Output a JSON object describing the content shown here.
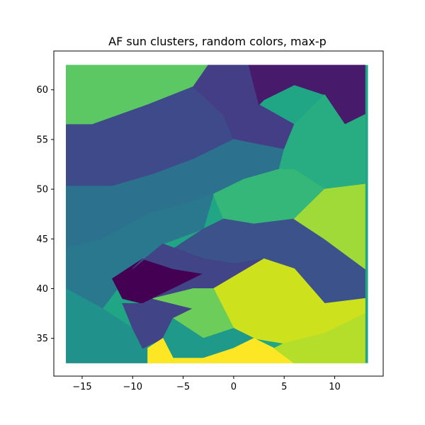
{
  "chart_data": {
    "type": "heatmap",
    "title": "AF sun clusters, random colors, max-p",
    "xlabel": "",
    "ylabel": "",
    "xlim": [
      -17.8,
      14.8
    ],
    "ylim": [
      31.2,
      63.9
    ],
    "x_ticks": [
      -15,
      -10,
      -5,
      0,
      5,
      10
    ],
    "y_ticks": [
      35,
      40,
      45,
      50,
      55,
      60
    ],
    "x_tick_labels": [
      "−15",
      "−10",
      "−5",
      "0",
      "5",
      "10"
    ],
    "y_tick_labels": [
      "35",
      "40",
      "45",
      "50",
      "55",
      "60"
    ],
    "grid": false,
    "legend": "none",
    "colormap": "viridis",
    "background_color": "#21a685",
    "regions": [
      {
        "color": "#5cc863",
        "points": [
          [
            -16.6,
            62.5
          ],
          [
            -2.5,
            62.5
          ],
          [
            -4,
            60.3
          ],
          [
            -8.5,
            58.5
          ],
          [
            -14,
            56.5
          ],
          [
            -16.6,
            56.5
          ]
        ]
      },
      {
        "color": "#3e4a89",
        "points": [
          [
            -16.6,
            56.5
          ],
          [
            -14,
            56.5
          ],
          [
            -8.5,
            58.5
          ],
          [
            -4,
            60.3
          ],
          [
            -1,
            57.5
          ],
          [
            0,
            55
          ],
          [
            -4,
            53
          ],
          [
            -8,
            51.5
          ],
          [
            -12,
            50.3
          ],
          [
            -16.6,
            50.3
          ]
        ]
      },
      {
        "color": "#433e85",
        "points": [
          [
            -2.5,
            62.5
          ],
          [
            1.5,
            62.5
          ],
          [
            2.5,
            58.5
          ],
          [
            6,
            56.5
          ],
          [
            5,
            54
          ],
          [
            0,
            55
          ],
          [
            -1,
            57.5
          ],
          [
            -4,
            60.3
          ]
        ]
      },
      {
        "color": "#481a6c",
        "points": [
          [
            1.5,
            62.5
          ],
          [
            13,
            62.5
          ],
          [
            13,
            57.5
          ],
          [
            11,
            56.5
          ],
          [
            9,
            59.5
          ],
          [
            6,
            60.5
          ],
          [
            3,
            59
          ],
          [
            2.5,
            58.5
          ]
        ]
      },
      {
        "color": "#2c728e",
        "points": [
          [
            -16.6,
            50.3
          ],
          [
            -12,
            50.3
          ],
          [
            -8,
            51.5
          ],
          [
            -4,
            53
          ],
          [
            0,
            55
          ],
          [
            5,
            54
          ],
          [
            4.5,
            52
          ],
          [
            1,
            51
          ],
          [
            -2,
            49.5
          ],
          [
            -5,
            48.5
          ],
          [
            -8.5,
            47.5
          ],
          [
            -13,
            45
          ],
          [
            -16.6,
            44
          ]
        ]
      },
      {
        "color": "#27ad81",
        "points": [
          [
            5,
            54
          ],
          [
            6,
            56.5
          ],
          [
            9,
            59.5
          ],
          [
            11,
            56.5
          ],
          [
            13,
            57.5
          ],
          [
            13,
            50.5
          ],
          [
            9,
            50
          ],
          [
            6,
            52
          ],
          [
            4.5,
            52
          ]
        ]
      },
      {
        "color": "#2a788e",
        "points": [
          [
            -16.6,
            44
          ],
          [
            -13,
            45
          ],
          [
            -8.5,
            47.5
          ],
          [
            -5,
            48.5
          ],
          [
            -2,
            49.5
          ],
          [
            -3,
            46
          ],
          [
            -7,
            44.5
          ],
          [
            -10,
            42
          ],
          [
            -13,
            38
          ],
          [
            -16.6,
            40
          ]
        ]
      },
      {
        "color": "#35b779",
        "points": [
          [
            -2,
            49.5
          ],
          [
            1,
            51
          ],
          [
            4.5,
            52
          ],
          [
            6,
            52
          ],
          [
            9,
            50
          ],
          [
            6,
            47
          ],
          [
            2,
            46.5
          ],
          [
            -1,
            47
          ]
        ]
      },
      {
        "color": "#21918c",
        "points": [
          [
            -16.6,
            40
          ],
          [
            -13,
            38
          ],
          [
            -10,
            36
          ],
          [
            -8.5,
            34
          ],
          [
            -8.5,
            32.5
          ],
          [
            -16.6,
            32.5
          ]
        ]
      },
      {
        "color": "#3b528b",
        "points": [
          [
            -3,
            46
          ],
          [
            -1,
            47
          ],
          [
            2,
            46.5
          ],
          [
            6,
            47
          ],
          [
            9,
            45
          ],
          [
            13,
            42
          ],
          [
            13,
            39
          ],
          [
            9,
            38.5
          ],
          [
            6,
            42
          ],
          [
            3,
            43
          ],
          [
            0,
            42.5
          ],
          [
            -3,
            43
          ],
          [
            -6,
            44
          ]
        ]
      },
      {
        "color": "#a0da39",
        "points": [
          [
            9,
            50
          ],
          [
            13,
            50.5
          ],
          [
            13,
            42
          ],
          [
            9,
            45
          ],
          [
            6,
            47
          ]
        ]
      },
      {
        "color": "#440154",
        "points": [
          [
            -12,
            41
          ],
          [
            -9,
            43
          ],
          [
            -6,
            42
          ],
          [
            -3,
            41.5
          ],
          [
            -5,
            40.5
          ],
          [
            -7,
            39.5
          ],
          [
            -9,
            38.5
          ],
          [
            -11,
            39
          ]
        ]
      },
      {
        "color": "#414487",
        "points": [
          [
            -10,
            42
          ],
          [
            -7,
            44.5
          ],
          [
            -3,
            43
          ],
          [
            0,
            42.5
          ],
          [
            3,
            43
          ],
          [
            -2,
            40
          ],
          [
            -4,
            38
          ],
          [
            -6,
            37
          ],
          [
            -7,
            35
          ],
          [
            -9,
            34
          ],
          [
            -10,
            36
          ],
          [
            -11,
            38.5
          ],
          [
            -9,
            38.5
          ],
          [
            -7,
            39.5
          ],
          [
            -5,
            40.5
          ],
          [
            -3,
            41.5
          ],
          [
            -6,
            42
          ],
          [
            -9,
            43
          ]
        ]
      },
      {
        "color": "#cde11d",
        "points": [
          [
            -2,
            40
          ],
          [
            3,
            43
          ],
          [
            6,
            42
          ],
          [
            9,
            38.5
          ],
          [
            13,
            39
          ],
          [
            13,
            37.5
          ],
          [
            9,
            35.5
          ],
          [
            5,
            34.5
          ],
          [
            2,
            35
          ],
          [
            0,
            36
          ]
        ]
      },
      {
        "color": "#6ccd5a",
        "points": [
          [
            -8,
            39
          ],
          [
            -4,
            40
          ],
          [
            -2,
            40
          ],
          [
            0,
            36
          ],
          [
            -3,
            35
          ],
          [
            -6,
            37
          ],
          [
            -4,
            38
          ]
        ]
      },
      {
        "color": "#1f998a",
        "points": [
          [
            -7,
            35
          ],
          [
            -6,
            37
          ],
          [
            -3,
            35
          ],
          [
            0,
            36
          ],
          [
            2,
            35
          ],
          [
            0,
            34
          ],
          [
            -3,
            33
          ],
          [
            -6,
            33
          ]
        ]
      },
      {
        "color": "#fde725",
        "points": [
          [
            -8.5,
            32.5
          ],
          [
            -8.5,
            34
          ],
          [
            -7,
            35
          ],
          [
            -6,
            33
          ],
          [
            -3,
            33
          ],
          [
            0,
            34
          ],
          [
            2,
            35
          ],
          [
            4,
            34
          ],
          [
            6,
            32.5
          ]
        ]
      },
      {
        "color": "#b5de2b",
        "points": [
          [
            6,
            32.5
          ],
          [
            4,
            34
          ],
          [
            5,
            34.5
          ],
          [
            9,
            35.5
          ],
          [
            13,
            37.5
          ],
          [
            13,
            32.5
          ]
        ]
      }
    ]
  }
}
